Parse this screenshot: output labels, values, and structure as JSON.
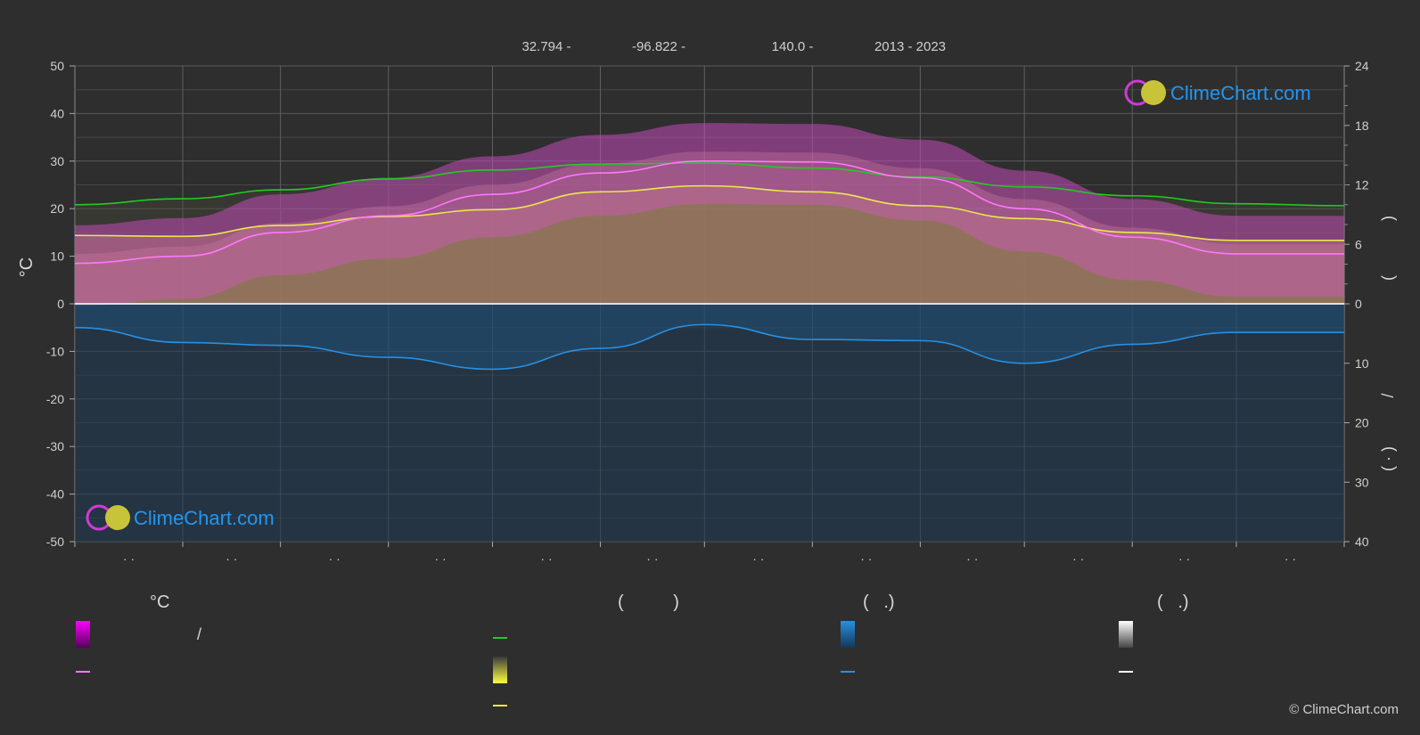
{
  "header": {
    "lat": "32.794 -",
    "lon": "-96.822 -",
    "elev": "140.0 -",
    "years": "2013 - 2023"
  },
  "logo_text": "ClimeChart.com",
  "copyright": "© ClimeChart.com",
  "colors": {
    "background": "#2e2e2e",
    "daylight": "#22cc22",
    "sunshine": "#e8e84a",
    "temp_line": "#ff77ff",
    "temp_range": "#ee22ee",
    "precip": "#2a8fe0",
    "logo": "#2196f3"
  },
  "chart_data": {
    "type": "line",
    "ylabel_left": "°C",
    "y_left_ticks": [
      "50",
      "40",
      "30",
      "20",
      "10",
      "0",
      "-10",
      "-20",
      "-30",
      "-40",
      "-50"
    ],
    "y_right_top_ticks": [
      "24",
      "18",
      "12",
      "6",
      "0"
    ],
    "y_right_bottom_ticks": [
      "0",
      "10",
      "20",
      "30",
      "40"
    ],
    "ylim_left": [
      -50,
      50
    ],
    "x_month_labels": [
      "· ·",
      "· ·",
      "· ·",
      "· ·",
      "· ·",
      "· ·",
      "· ·",
      "· ·",
      "· ·",
      "· ·",
      "· ·",
      "· ·"
    ],
    "x_fraction": [
      0,
      0.085,
      0.162,
      0.247,
      0.329,
      0.414,
      0.496,
      0.581,
      0.666,
      0.748,
      0.833,
      0.915,
      1.0
    ],
    "series": [
      {
        "key": "daylight_hours",
        "values": [
          10.0,
          10.6,
          11.5,
          12.6,
          13.5,
          14.1,
          14.2,
          13.7,
          12.8,
          11.8,
          10.9,
          10.1,
          9.9
        ]
      },
      {
        "key": "sunshine_hours",
        "values": [
          6.9,
          6.8,
          7.9,
          8.8,
          9.5,
          11.3,
          11.9,
          11.3,
          9.9,
          8.6,
          7.2,
          6.4,
          6.4
        ]
      },
      {
        "key": "avg_temp_line",
        "values": [
          8.5,
          10.0,
          15.0,
          18.5,
          23.0,
          27.5,
          30.0,
          29.8,
          26.5,
          20.0,
          14.0,
          10.5,
          10.5
        ]
      },
      {
        "key": "precip_mm",
        "values": [
          4.0,
          6.5,
          7.0,
          9.0,
          11.0,
          7.5,
          3.5,
          6.0,
          6.2,
          10.0,
          6.8,
          4.8,
          4.8
        ]
      }
    ],
    "grid": true
  },
  "legend": {
    "headers": [
      "°C",
      "(          )",
      "(   .)",
      "(   .)"
    ],
    "items": [
      {
        "label": "/"
      },
      {
        "label": ""
      },
      {
        "label": ""
      },
      {
        "label": ""
      },
      {
        "label": ""
      },
      {
        "label": ""
      },
      {
        "label": ""
      },
      {
        "label": ""
      },
      {
        "label": ""
      }
    ]
  }
}
